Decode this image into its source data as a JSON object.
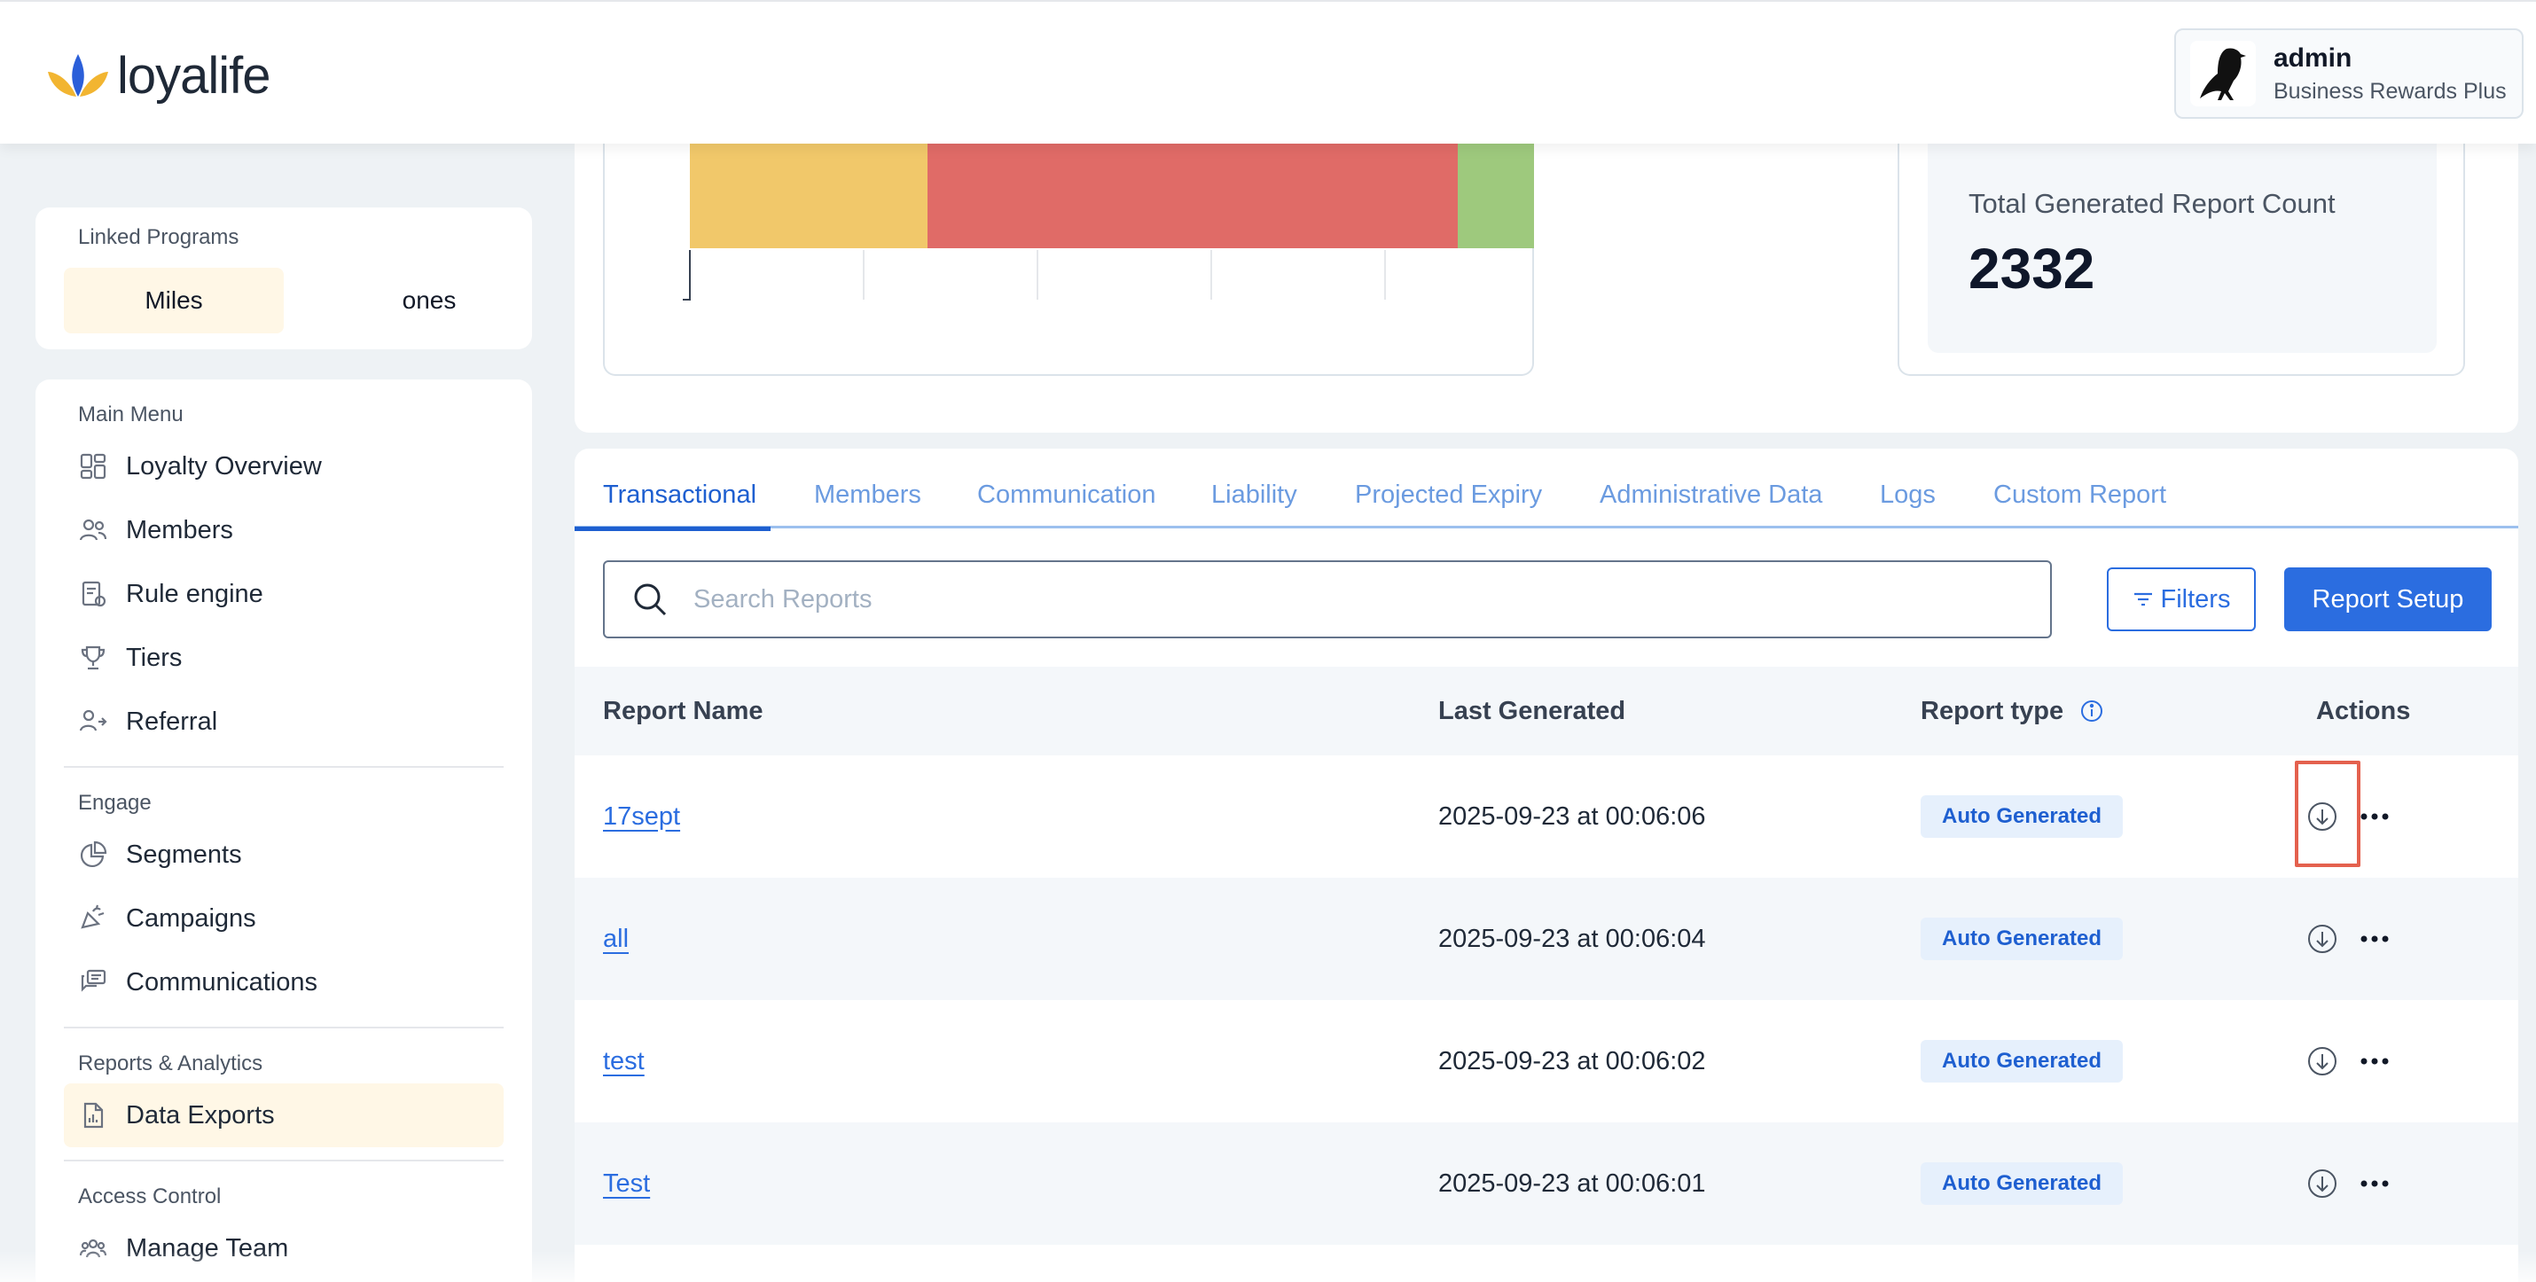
{
  "header": {
    "brand": "loyalife",
    "user": {
      "name": "admin",
      "plan": "Business Rewards Plus"
    }
  },
  "linked_programs": {
    "label": "Linked Programs",
    "items": [
      "Miles",
      "ones"
    ]
  },
  "sidebar": {
    "main_menu": {
      "label": "Main Menu",
      "items": [
        "Loyalty Overview",
        "Members",
        "Rule engine",
        "Tiers",
        "Referral"
      ]
    },
    "engage": {
      "label": "Engage",
      "items": [
        "Segments",
        "Campaigns",
        "Communications"
      ]
    },
    "reports": {
      "label": "Reports & Analytics",
      "items": [
        "Data Exports"
      ]
    },
    "access": {
      "label": "Access Control",
      "items": [
        "Manage Team"
      ]
    }
  },
  "chart_data": {
    "type": "bar",
    "orientation": "horizontal-stacked",
    "series": [
      {
        "name": "",
        "color": "#f1c86a"
      },
      {
        "name": "",
        "color": "#e06b67"
      },
      {
        "name": "",
        "color": "#9ec97d"
      }
    ]
  },
  "stats": {
    "total_label": "Total Generated Report Count",
    "total_value": "2332"
  },
  "tabs": [
    "Transactional",
    "Members",
    "Communication",
    "Liability",
    "Projected Expiry",
    "Administrative Data",
    "Logs",
    "Custom Report"
  ],
  "search": {
    "placeholder": "Search Reports"
  },
  "buttons": {
    "filters": "Filters",
    "setup": "Report Setup"
  },
  "table": {
    "columns": [
      "Report Name",
      "Last Generated",
      "Report type",
      "Actions"
    ],
    "rows": [
      {
        "name": "17sept",
        "last_generated": "2025-09-23 at 00:06:06",
        "type": "Auto Generated"
      },
      {
        "name": "all",
        "last_generated": "2025-09-23 at 00:06:04",
        "type": "Auto Generated"
      },
      {
        "name": "test",
        "last_generated": "2025-09-23 at 00:06:02",
        "type": "Auto Generated"
      },
      {
        "name": "Test",
        "last_generated": "2025-09-23 at 00:06:01",
        "type": "Auto Generated"
      }
    ]
  },
  "colors": {
    "accent": "#2b6de0",
    "active_bg": "#fff7e6",
    "highlight": "#e4614e"
  }
}
